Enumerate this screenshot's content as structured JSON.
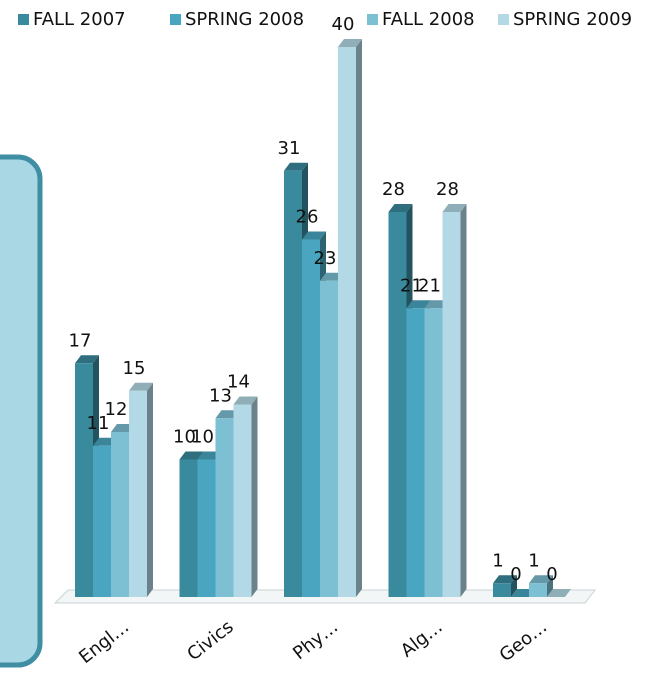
{
  "chart_data": {
    "type": "bar3d",
    "categories": [
      "Engl…",
      "Civics",
      "Phy…",
      "Alg…",
      "Geo…"
    ],
    "series": [
      {
        "name": "FALL 2007",
        "color": "#3a8a9e",
        "values": [
          17,
          10,
          31,
          28,
          1
        ]
      },
      {
        "name": "SPRING 2008",
        "color": "#4aa6c0",
        "values": [
          11,
          10,
          26,
          21,
          0
        ]
      },
      {
        "name": "FALL 2008",
        "color": "#7dbfd3",
        "values": [
          12,
          13,
          23,
          21,
          1
        ]
      },
      {
        "name": "SPRING 2009",
        "color": "#b4d9e6",
        "values": [
          15,
          14,
          40,
          28,
          0
        ]
      }
    ],
    "legend": "top"
  }
}
